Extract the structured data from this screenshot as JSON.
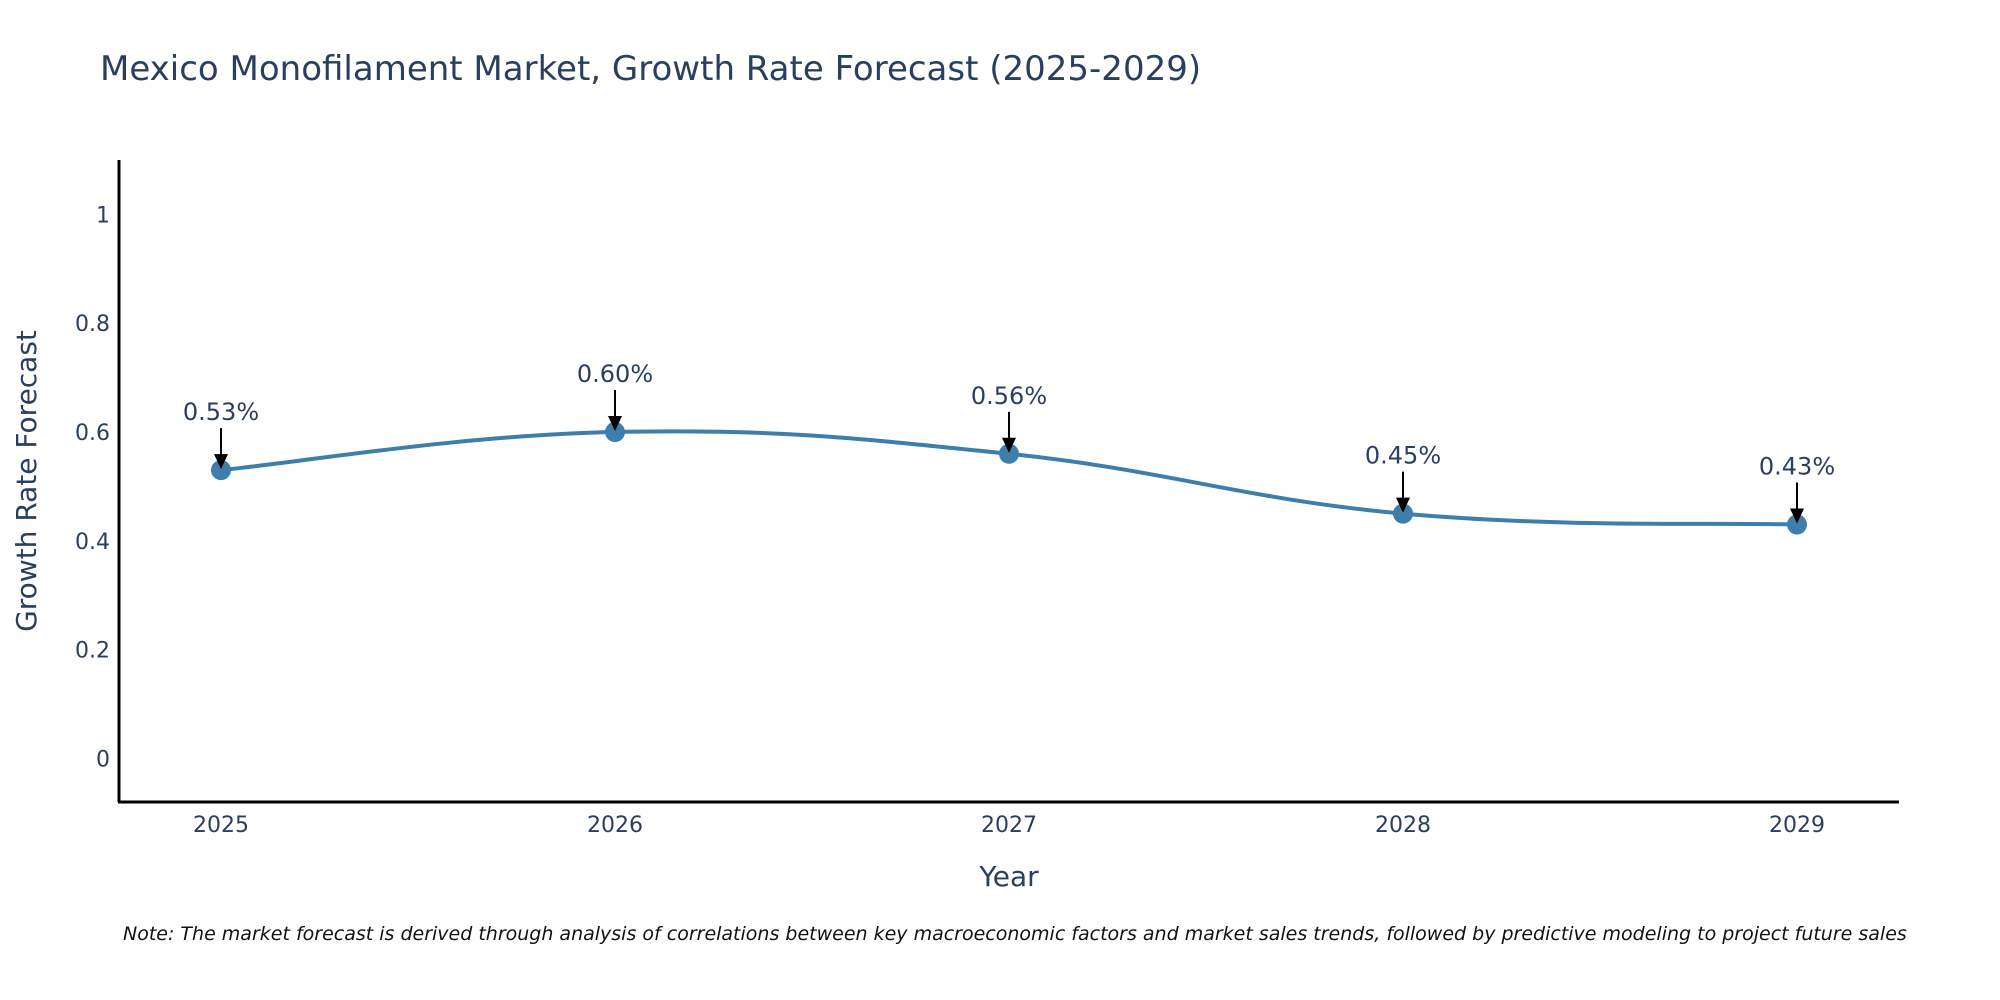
{
  "chart_data": {
    "type": "line",
    "title": "Mexico Monofilament Market, Growth Rate Forecast (2025-2029)",
    "xlabel": "Year",
    "ylabel": "Growth Rate Forecast",
    "categories": [
      "2025",
      "2026",
      "2027",
      "2028",
      "2029"
    ],
    "series": [
      {
        "name": "Growth Rate Forecast",
        "values": [
          0.53,
          0.6,
          0.56,
          0.45,
          0.43
        ],
        "labels": [
          "0.53%",
          "0.60%",
          "0.56%",
          "0.45%",
          "0.43%"
        ]
      }
    ],
    "ylim": [
      -0.08,
      1.1
    ],
    "yticks": [
      0,
      0.2,
      0.4,
      0.6,
      0.8,
      1
    ],
    "ytick_labels": [
      "0",
      "0.2",
      "0.4",
      "0.6",
      "0.8",
      "1"
    ],
    "grid": false,
    "line_color": "#3d7eaa",
    "marker_color": "#3d7eaa",
    "arrow_color": "#000000",
    "line_shape": "spline",
    "note": "Note: The market forecast is derived through analysis of correlations between key macroeconomic factors and market sales trends, followed by predictive modeling to project future sales"
  }
}
